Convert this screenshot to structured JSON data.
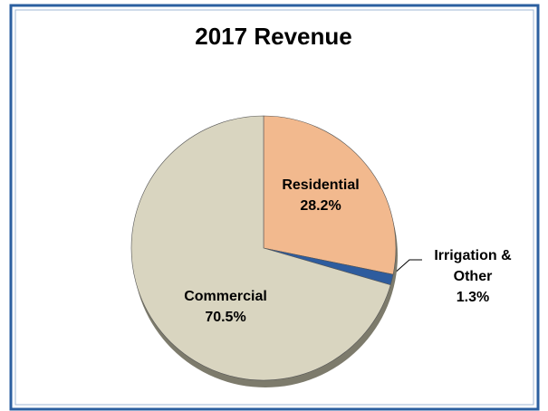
{
  "chart_data": {
    "type": "pie",
    "title": "2017 Revenue",
    "categories": [
      "Residential",
      "Irrigation & Other",
      "Commercial"
    ],
    "values": [
      28.2,
      1.3,
      70.5
    ],
    "value_labels": [
      "28.2%",
      "1.3%",
      "70.5%"
    ],
    "colors": [
      "#f2b98e",
      "#2e5c9e",
      "#d9d5c0"
    ]
  }
}
